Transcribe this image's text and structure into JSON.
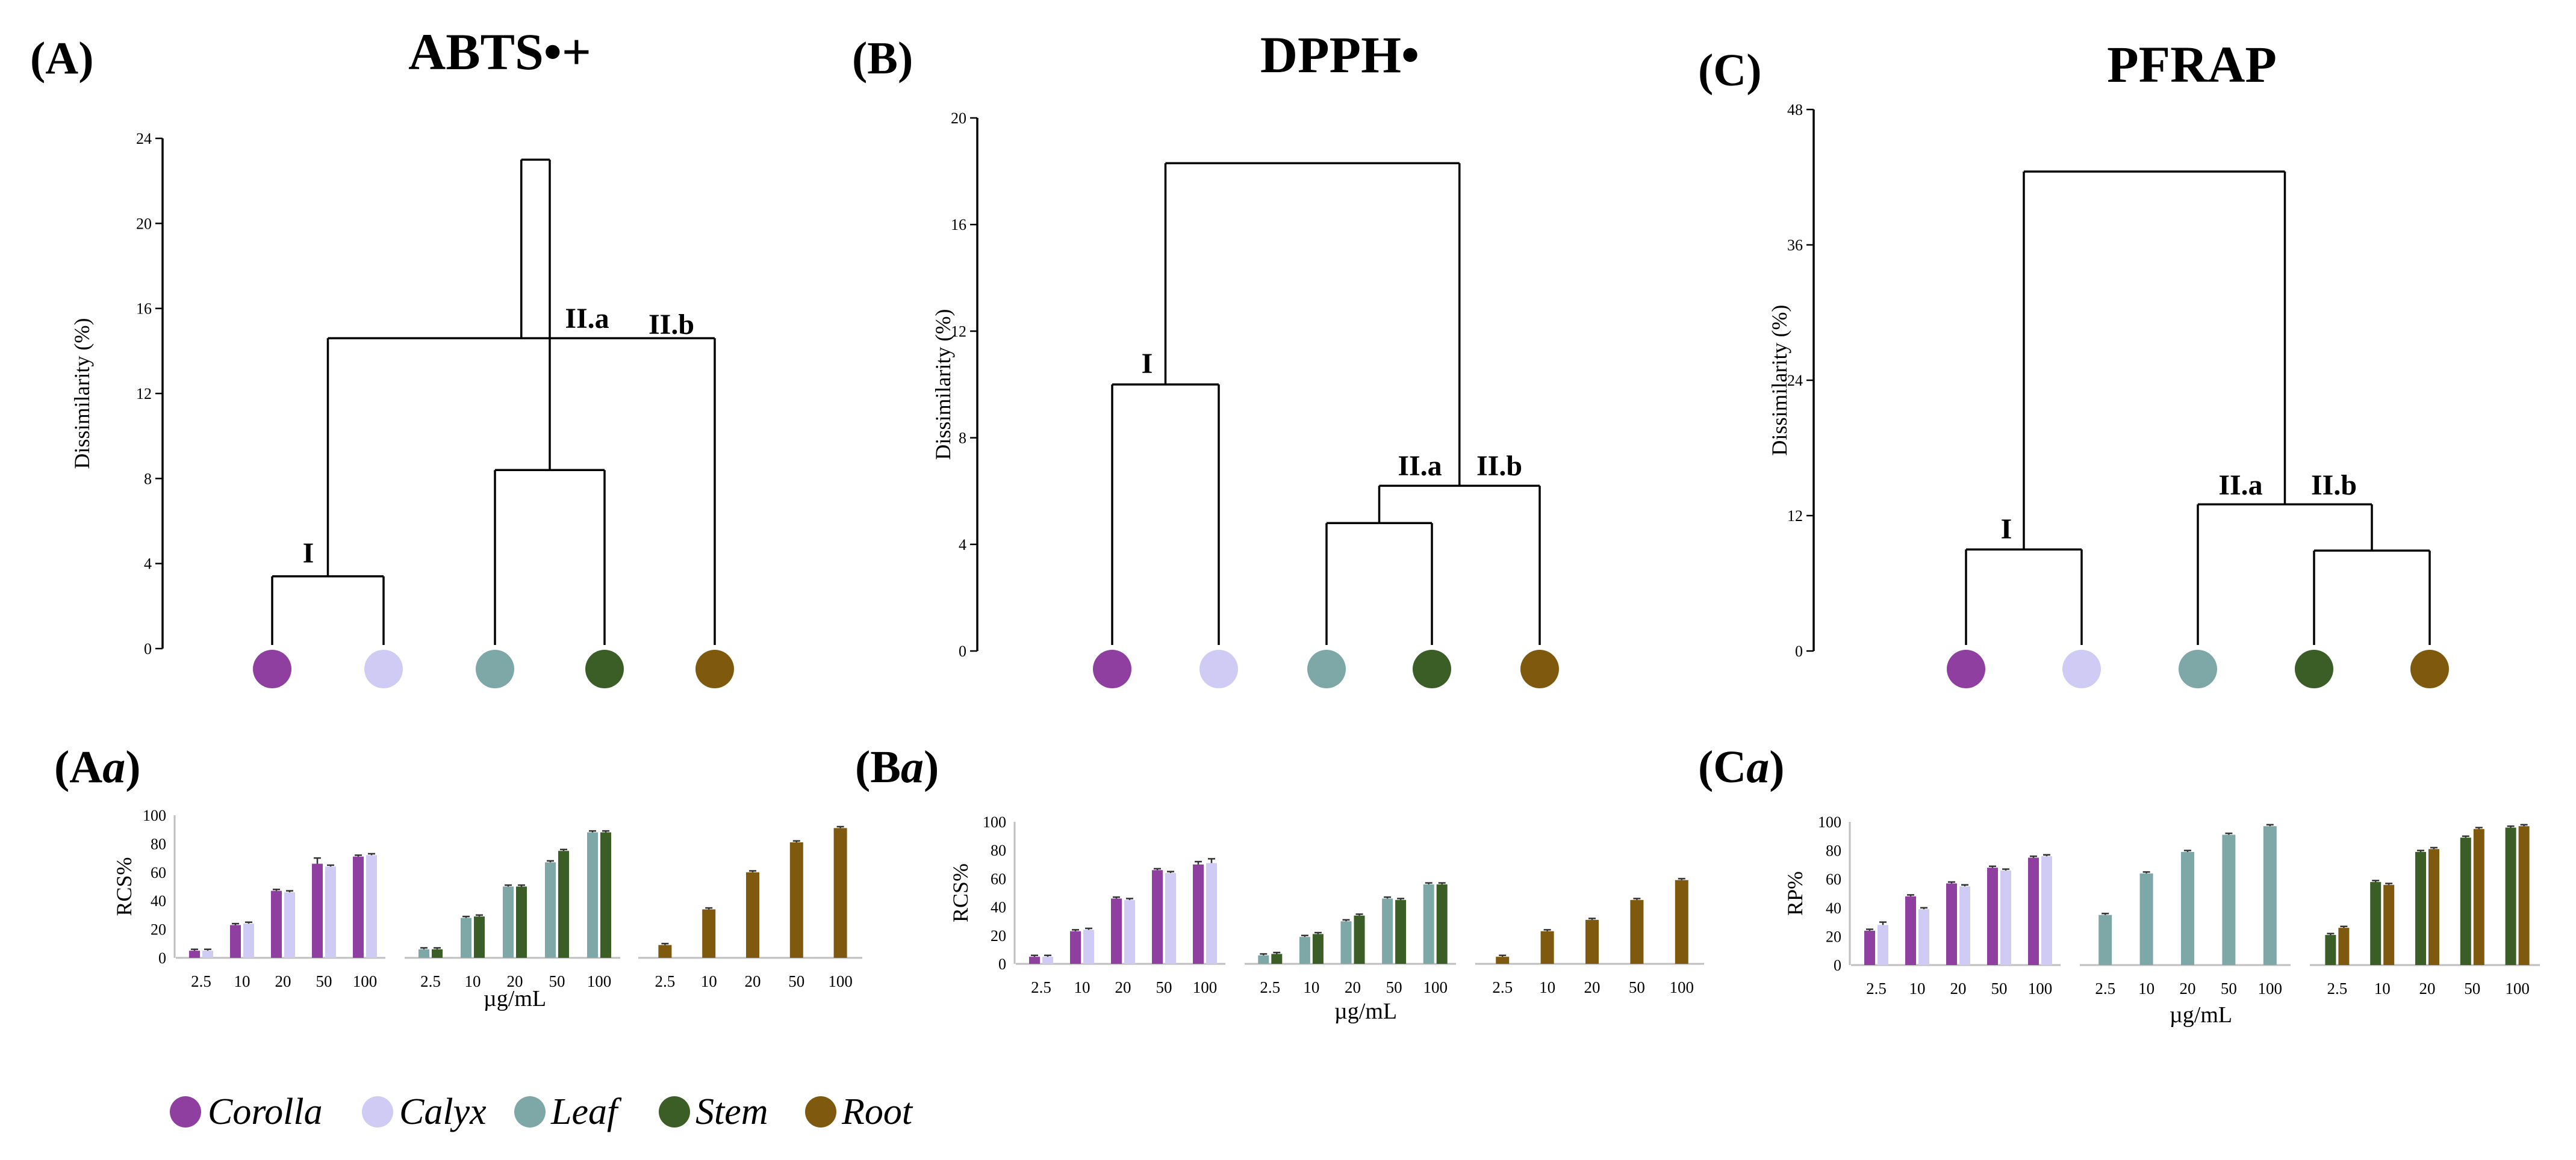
{
  "colors": {
    "Corolla": "#8f3fa0",
    "Calyx": "#cfcbf4",
    "Leaf": "#7ea8a8",
    "Stem": "#3a5e26",
    "Root": "#7f5a0e"
  },
  "legend": {
    "items": [
      "Corolla",
      "Calyx",
      "Leaf",
      "Stem",
      "Root"
    ]
  },
  "chart_data": [
    {
      "type": "dendrogram",
      "panel": "(A)",
      "title": "ABTS•+",
      "ylabel": "Dissimilarity (%)",
      "ylim": [
        0,
        24
      ],
      "yticks": [
        "0",
        "4",
        "8",
        "12",
        "16",
        "20",
        "24"
      ],
      "leaves": [
        "Corolla",
        "Calyx",
        "Leaf",
        "Stem",
        "Root"
      ],
      "merges": [
        {
          "a": 0,
          "b": 1,
          "height": 3.4
        },
        {
          "a": 2,
          "b": 3,
          "height": 8.4
        },
        {
          "a": 5,
          "b": 4,
          "height": 14.6
        },
        {
          "a": 6,
          "b": 7,
          "height": 23.0
        }
      ],
      "cluster_labels": [
        "I",
        "II.a",
        "II.b"
      ]
    },
    {
      "type": "dendrogram",
      "panel": "(B)",
      "title": "DPPH•",
      "ylabel": "Dissimilarity (%)",
      "ylim": [
        0,
        20
      ],
      "yticks": [
        "0",
        "4",
        "8",
        "12",
        "16",
        "20"
      ],
      "leaves": [
        "Corolla",
        "Calyx",
        "Leaf",
        "Stem",
        "Root"
      ],
      "merges": [
        {
          "a": 0,
          "b": 1,
          "height": 10.0
        },
        {
          "a": 2,
          "b": 3,
          "height": 4.8
        },
        {
          "a": 6,
          "b": 4,
          "height": 6.2
        },
        {
          "a": 5,
          "b": 7,
          "height": 18.3
        }
      ],
      "cluster_labels": [
        "I",
        "II.a",
        "II.b"
      ]
    },
    {
      "type": "dendrogram",
      "panel": "(C)",
      "title": "PFRAP",
      "ylabel": "Dissimilarity (%)",
      "ylim": [
        0,
        48
      ],
      "yticks": [
        "0",
        "12",
        "24",
        "36",
        "48"
      ],
      "leaves": [
        "Corolla",
        "Calyx",
        "Leaf",
        "Stem",
        "Root"
      ],
      "merges": [
        {
          "a": 0,
          "b": 1,
          "height": 9.0
        },
        {
          "a": 3,
          "b": 4,
          "height": 8.9
        },
        {
          "a": 2,
          "b": 6,
          "height": 13.0
        },
        {
          "a": 5,
          "b": 7,
          "height": 42.5
        }
      ],
      "cluster_labels": [
        "I",
        "II.a",
        "II.b"
      ]
    },
    {
      "type": "bar",
      "panel": "(Aa)",
      "panel_main": "(A",
      "panel_italic": "a",
      "panel_close": ")",
      "ylabel": "RCS%",
      "xlabel": "µg/mL",
      "ylim": [
        0,
        100
      ],
      "yticks": [
        "0",
        "20",
        "40",
        "60",
        "80",
        "100"
      ],
      "categories": [
        "2.5",
        "10",
        "20",
        "50",
        "100"
      ],
      "groups": [
        {
          "series": [
            {
              "name": "Corolla",
              "values": [
                5,
                23,
                47,
                66,
                71
              ],
              "err": [
                1,
                1,
                1,
                4,
                1
              ]
            },
            {
              "name": "Calyx",
              "values": [
                5,
                24,
                46,
                64,
                72
              ],
              "err": [
                1,
                1,
                1,
                1,
                1
              ]
            }
          ]
        },
        {
          "series": [
            {
              "name": "Leaf",
              "values": [
                6,
                28,
                50,
                67,
                88
              ],
              "err": [
                1,
                1,
                1,
                1,
                1
              ]
            },
            {
              "name": "Stem",
              "values": [
                6,
                29,
                50,
                75,
                88
              ],
              "err": [
                1,
                1,
                1,
                1,
                1
              ]
            }
          ]
        },
        {
          "series": [
            {
              "name": "Root",
              "values": [
                9,
                34,
                60,
                81,
                91
              ],
              "err": [
                1,
                1,
                1,
                1,
                1
              ]
            }
          ]
        }
      ]
    },
    {
      "type": "bar",
      "panel": "(Ba)",
      "panel_main": "(B",
      "panel_italic": "a",
      "panel_close": ")",
      "ylabel": "RCS%",
      "xlabel": "µg/mL",
      "ylim": [
        0,
        100
      ],
      "yticks": [
        "0",
        "20",
        "40",
        "60",
        "80",
        "100"
      ],
      "categories": [
        "2.5",
        "10",
        "20",
        "50",
        "100"
      ],
      "groups": [
        {
          "series": [
            {
              "name": "Corolla",
              "values": [
                5,
                23,
                46,
                66,
                70
              ],
              "err": [
                1,
                1,
                1,
                1,
                2
              ]
            },
            {
              "name": "Calyx",
              "values": [
                5,
                24,
                45,
                64,
                71
              ],
              "err": [
                1,
                1,
                1,
                1,
                3
              ]
            }
          ]
        },
        {
          "series": [
            {
              "name": "Leaf",
              "values": [
                6,
                19,
                30,
                46,
                56
              ],
              "err": [
                1,
                1,
                1,
                1,
                1
              ]
            },
            {
              "name": "Stem",
              "values": [
                7,
                21,
                34,
                45,
                56
              ],
              "err": [
                1,
                1,
                1,
                1,
                1
              ]
            }
          ]
        },
        {
          "series": [
            {
              "name": "Root",
              "values": [
                5,
                23,
                31,
                45,
                59
              ],
              "err": [
                1,
                1,
                1,
                1,
                1
              ]
            }
          ]
        }
      ]
    },
    {
      "type": "bar",
      "panel": "(Ca)",
      "panel_main": "(C",
      "panel_italic": "a",
      "panel_close": ")",
      "ylabel": "RP%",
      "xlabel": "µg/mL",
      "ylim": [
        0,
        100
      ],
      "yticks": [
        "0",
        "20",
        "40",
        "60",
        "80",
        "100"
      ],
      "categories": [
        "2.5",
        "10",
        "20",
        "50",
        "100"
      ],
      "groups": [
        {
          "series": [
            {
              "name": "Corolla",
              "values": [
                24,
                48,
                57,
                68,
                75
              ],
              "err": [
                1,
                1,
                1,
                1,
                1
              ]
            },
            {
              "name": "Calyx",
              "values": [
                28,
                39,
                55,
                66,
                76
              ],
              "err": [
                2,
                1,
                1,
                1,
                1
              ]
            }
          ]
        },
        {
          "series": [
            {
              "name": "Leaf",
              "values": [
                35,
                64,
                79,
                91,
                97
              ],
              "err": [
                1,
                1,
                1,
                1,
                1
              ]
            }
          ]
        },
        {
          "series": [
            {
              "name": "Stem",
              "values": [
                21,
                58,
                79,
                89,
                96
              ],
              "err": [
                1,
                1,
                1,
                1,
                1
              ]
            },
            {
              "name": "Root",
              "values": [
                26,
                56,
                81,
                95,
                97
              ],
              "err": [
                1,
                1,
                1,
                1,
                1
              ]
            }
          ]
        }
      ]
    }
  ]
}
